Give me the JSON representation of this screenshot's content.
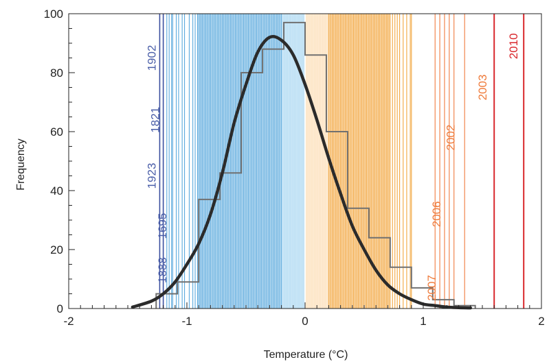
{
  "chart_data": {
    "type": "histogram",
    "title": "",
    "xlabel": "Temperature (°C)",
    "ylabel": "Frequency",
    "xlim": [
      -2,
      2
    ],
    "ylim": [
      0,
      100
    ],
    "x_ticks": [
      -2,
      -1,
      0,
      1,
      2
    ],
    "x_tick_labels": [
      "-2",
      "-1",
      "0",
      "1",
      "2"
    ],
    "y_ticks": [
      0,
      20,
      40,
      60,
      80,
      100
    ],
    "y_tick_labels": [
      "0",
      "20",
      "40",
      "60",
      "80",
      "100"
    ],
    "grid": false,
    "histogram": {
      "bin_width": 0.18,
      "bins": [
        {
          "x0": -1.26,
          "x1": -1.08,
          "count": 5
        },
        {
          "x0": -1.08,
          "x1": -0.9,
          "count": 9
        },
        {
          "x0": -0.9,
          "x1": -0.72,
          "count": 37
        },
        {
          "x0": -0.72,
          "x1": -0.54,
          "count": 46
        },
        {
          "x0": -0.54,
          "x1": -0.36,
          "count": 80
        },
        {
          "x0": -0.36,
          "x1": -0.18,
          "count": 88
        },
        {
          "x0": -0.18,
          "x1": 0.0,
          "count": 97
        },
        {
          "x0": 0.0,
          "x1": 0.18,
          "count": 86
        },
        {
          "x0": 0.18,
          "x1": 0.36,
          "count": 60
        },
        {
          "x0": 0.36,
          "x1": 0.54,
          "count": 34
        },
        {
          "x0": 0.54,
          "x1": 0.72,
          "count": 24
        },
        {
          "x0": 0.72,
          "x1": 0.9,
          "count": 14
        },
        {
          "x0": 0.9,
          "x1": 1.08,
          "count": 7
        },
        {
          "x0": 1.08,
          "x1": 1.26,
          "count": 3
        },
        {
          "x0": 1.26,
          "x1": 1.44,
          "count": 1
        }
      ]
    },
    "fit_curve": {
      "x": [
        -1.46,
        -1.3,
        -1.2,
        -1.1,
        -1.0,
        -0.9,
        -0.8,
        -0.7,
        -0.6,
        -0.5,
        -0.4,
        -0.3,
        -0.2,
        -0.1,
        0.0,
        0.1,
        0.2,
        0.3,
        0.4,
        0.5,
        0.6,
        0.7,
        0.8,
        0.9,
        1.0,
        1.1,
        1.2,
        1.3,
        1.4
      ],
      "y": [
        0.5,
        2.5,
        5,
        9,
        15,
        22,
        32,
        46,
        63,
        76,
        87,
        92,
        91,
        86,
        76,
        64,
        51,
        39,
        28,
        20,
        13,
        8,
        5,
        3,
        1.5,
        1,
        0.5,
        0.3,
        0.2
      ]
    },
    "year_lines": {
      "cold_dark": [
        -1.23,
        -1.2
      ],
      "cold": [
        -1.17,
        -1.15,
        -1.13,
        -1.12,
        -1.09,
        -1.07,
        -1.04,
        -1.02,
        -0.98,
        -0.95,
        -0.93,
        -0.91,
        -0.9,
        -0.89,
        -0.88,
        -0.87,
        -0.86,
        -0.85,
        -0.84,
        -0.83,
        -0.82,
        -0.81,
        -0.8,
        -0.79,
        -0.78,
        -0.77,
        -0.76,
        -0.75,
        -0.74,
        -0.73,
        -0.72,
        -0.71,
        -0.7,
        -0.69,
        -0.68,
        -0.67,
        -0.66,
        -0.65,
        -0.64,
        -0.63,
        -0.62,
        -0.61,
        -0.6,
        -0.59,
        -0.58,
        -0.57,
        -0.56,
        -0.55,
        -0.54,
        -0.53,
        -0.52,
        -0.51,
        -0.5,
        -0.49,
        -0.48,
        -0.47,
        -0.46,
        -0.45,
        -0.44,
        -0.43,
        -0.42,
        -0.41,
        -0.4,
        -0.39,
        -0.38,
        -0.37,
        -0.36,
        -0.35,
        -0.34,
        -0.33,
        -0.32,
        -0.31,
        -0.3,
        -0.29,
        -0.28,
        -0.27,
        -0.26,
        -0.25,
        -0.24,
        -0.23,
        -0.22,
        -0.21,
        -0.2
      ],
      "near_cold": [
        -0.19,
        -0.18,
        -0.17,
        -0.16,
        -0.15,
        -0.14,
        -0.13,
        -0.12,
        -0.11,
        -0.1,
        -0.09,
        -0.08,
        -0.07,
        -0.06,
        -0.05,
        -0.04,
        -0.03,
        -0.02,
        -0.01
      ],
      "near_warm": [
        0.01,
        0.02,
        0.03,
        0.04,
        0.05,
        0.06,
        0.07,
        0.08,
        0.09,
        0.1,
        0.11,
        0.12,
        0.13,
        0.14,
        0.15,
        0.16,
        0.17,
        0.18,
        0.19
      ],
      "warm": [
        0.2,
        0.21,
        0.22,
        0.23,
        0.24,
        0.25,
        0.26,
        0.27,
        0.28,
        0.29,
        0.3,
        0.31,
        0.32,
        0.33,
        0.34,
        0.35,
        0.36,
        0.37,
        0.38,
        0.39,
        0.4,
        0.41,
        0.42,
        0.43,
        0.44,
        0.45,
        0.46,
        0.47,
        0.48,
        0.49,
        0.5,
        0.51,
        0.52,
        0.53,
        0.54,
        0.55,
        0.56,
        0.57,
        0.58,
        0.59,
        0.6,
        0.61,
        0.62,
        0.63,
        0.64,
        0.65,
        0.66,
        0.67,
        0.68,
        0.69,
        0.7,
        0.71,
        0.72,
        0.74,
        0.76,
        0.78,
        0.8,
        0.83,
        0.86,
        0.89,
        0.9
      ],
      "hot": [
        1.1,
        1.14,
        1.18,
        1.22,
        1.26,
        1.35
      ],
      "extreme": [
        1.6,
        1.85
      ]
    },
    "year_labels": [
      {
        "text": "1902",
        "x": -1.23,
        "y": 85,
        "group": "cold"
      },
      {
        "text": "1821",
        "x": -1.2,
        "y": 64,
        "group": "cold"
      },
      {
        "text": "1923",
        "x": -1.23,
        "y": 45,
        "group": "cold"
      },
      {
        "text": "1695",
        "x": -1.14,
        "y": 28,
        "group": "cold"
      },
      {
        "text": "1888",
        "x": -1.14,
        "y": 13,
        "group": "cold"
      },
      {
        "text": "2007",
        "x": 1.14,
        "y": 7,
        "group": "hot"
      },
      {
        "text": "2006",
        "x": 1.18,
        "y": 32,
        "group": "hot"
      },
      {
        "text": "2002",
        "x": 1.3,
        "y": 58,
        "group": "hot"
      },
      {
        "text": "2003",
        "x": 1.57,
        "y": 75,
        "group": "hot"
      },
      {
        "text": "2010",
        "x": 1.83,
        "y": 89,
        "group": "extreme"
      }
    ]
  },
  "colors": {
    "cold_dark": "#3b4f9e",
    "cold": "#5aa9dd",
    "near_cold": "#bfe1f5",
    "near_warm": "#fde6c8",
    "warm": "#f2a63f",
    "hot": "#f07a3e",
    "extreme": "#d9262b",
    "label_cold": "#4a5ea8",
    "label_hot": "#ef7b3b",
    "label_extreme": "#d9262b",
    "histogram": "#707070",
    "curve": "#2b2b2b",
    "axis": "#222222"
  }
}
